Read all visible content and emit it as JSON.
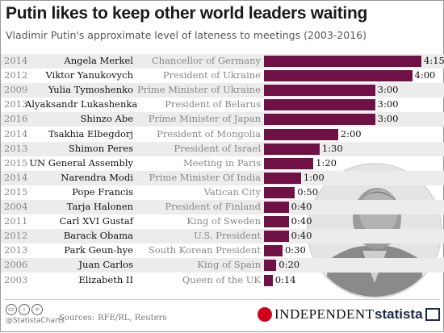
{
  "title": "Putin likes to keep other world leaders waiting",
  "subtitle": "Vladimir Putin's approximate level of lateness to meetings (2003-2016)",
  "chart_data": {
    "type": "bar",
    "orientation": "horizontal",
    "unit": "hours:minutes",
    "bar_color": "#6f1144",
    "categories": [
      "Angela Merkel",
      "Viktor Yanukovych",
      "Yulia Tymoshenko",
      "Alyaksandr Lukashenka",
      "Shinzo Abe",
      "Tsakhia Elbegdorj",
      "Shimon Peres",
      "UN General Assembly",
      "Narendra Modi",
      "Pope Francis",
      "Tarja Halonen",
      "Carl XVI Gustaf",
      "Barack Obama",
      "Park Geun-hye",
      "Juan Carlos",
      "Elizabeth II"
    ],
    "years": [
      "2014",
      "2012",
      "2009",
      "2013",
      "2016",
      "2014",
      "2013",
      "2015",
      "2014",
      "2015",
      "2004",
      "2011",
      "2012",
      "2013",
      "2006",
      "2003"
    ],
    "roles": [
      "Chancellor of Germany",
      "President of Ukraine",
      "Prime Minister of Ukraine",
      "President of Belarus",
      "Prime Minister of Japan",
      "President of Mongolia",
      "President of Israel",
      "Meeting in Paris",
      "Prime Minister Of India",
      "Vatican City",
      "President of Finland",
      "King of Sweden",
      "U.S. President",
      "South Korean President",
      "King of Spain",
      "Queen of the UK"
    ],
    "values": [
      255,
      240,
      180,
      180,
      180,
      120,
      90,
      80,
      60,
      50,
      40,
      40,
      40,
      30,
      20,
      14
    ],
    "labels": [
      "4:15",
      "4:00",
      "3:00",
      "3:00",
      "3:00",
      "2:00",
      "1:30",
      "1:20",
      "1:00",
      "0:50",
      "0:40",
      "0:40",
      "0:40",
      "0:30",
      "0:20",
      "0:14"
    ],
    "xlim": [
      0,
      255
    ],
    "grid": false
  },
  "footer": {
    "handle": "@StatistaCharts",
    "source_label": "Sources:",
    "source_text": "RFE/RL, Reuters",
    "publisher": "INDEPENDENT",
    "brand": "statista"
  }
}
